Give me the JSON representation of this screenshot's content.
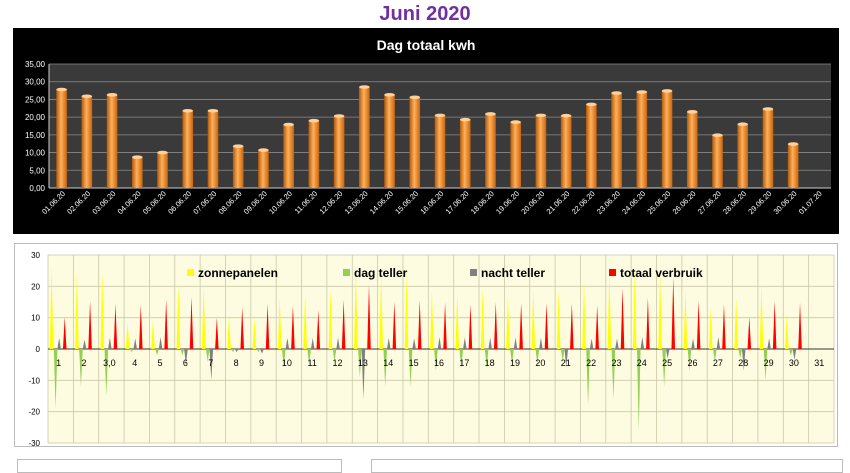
{
  "page": {
    "title": "Juni 2020"
  },
  "chart_data": [
    {
      "type": "bar",
      "title": "Dag totaal kwh",
      "categories": [
        "01.06.20",
        "02.06.20",
        "03.06.20",
        "04.06.20",
        "05.06.20",
        "06.06.20",
        "07.06.20",
        "08.06.20",
        "09.06.20",
        "10.06.20",
        "11.06.20",
        "12.06.20",
        "13.06.20",
        "14.06.20",
        "15.06.20",
        "16.06.20",
        "17.06.20",
        "18.06.20",
        "19.06.20",
        "20.06.20",
        "21.06.20",
        "22.06.20",
        "23.06.20",
        "24.06.20",
        "25.06.20",
        "26.06.20",
        "27.06.20",
        "28.06.20",
        "29.06.20",
        "30.06.20",
        "01.07.20"
      ],
      "values": [
        27.8,
        25.9,
        26.3,
        8.7,
        10.0,
        21.8,
        21.8,
        11.8,
        10.7,
        17.9,
        19.0,
        20.3,
        28.5,
        26.3,
        25.6,
        20.5,
        19.3,
        20.9,
        18.6,
        20.5,
        20.4,
        23.6,
        26.8,
        27.1,
        27.4,
        21.5,
        14.9,
        18.0,
        22.3,
        12.4,
        0
      ],
      "yticks": [
        "0,00",
        "5,00",
        "10,00",
        "15,00",
        "20,00",
        "25,00",
        "30,00",
        "35,00"
      ],
      "ylim": [
        0,
        35
      ],
      "grid": true,
      "colors": {
        "background": "#000000",
        "plot": "#3a3a3a",
        "bar": "#f07f17",
        "text": "#ffffff"
      }
    },
    {
      "type": "area",
      "categories": [
        "1",
        "2",
        "3,0",
        "4",
        "5",
        "6",
        "7",
        "8",
        "9",
        "10",
        "11",
        "12",
        "13",
        "14",
        "15",
        "16",
        "17",
        "18",
        "19",
        "20",
        "21",
        "22",
        "23",
        "24",
        "25",
        "26",
        "27",
        "28",
        "29",
        "30",
        "31"
      ],
      "ylim": [
        -30,
        30
      ],
      "yticks": [
        "30",
        "20",
        "10",
        "0",
        "-10",
        "-20",
        "-30"
      ],
      "legend_position": "top",
      "grid": true,
      "series": [
        {
          "name": "zonnepanelen",
          "color": "#ffff00",
          "values": [
            26.5,
            24.8,
            24.6,
            8.5,
            9.1,
            20.5,
            20.5,
            10.8,
            9.8,
            16.6,
            17.5,
            18.9,
            26.3,
            24.1,
            23.8,
            19.0,
            17.7,
            19.3,
            17.1,
            18.9,
            18.9,
            21.8,
            25.1,
            25.0,
            25.1,
            19.4,
            13.3,
            16.6,
            20.6,
            11.2,
            0
          ]
        },
        {
          "name": "dag teller",
          "color": "#92d050",
          "values": [
            -19.0,
            -12.0,
            -15.0,
            -1.0,
            -2.0,
            -2.0,
            -4.0,
            -1.0,
            -1.0,
            -6.0,
            -5.0,
            -4.0,
            -9.0,
            -12.0,
            -12.0,
            -7.0,
            -6.0,
            -6.0,
            -5.0,
            -5.0,
            -4.0,
            -18.0,
            -16.0,
            -26.0,
            -12.0,
            -7.0,
            -4.0,
            -3.0,
            -10.0,
            -2.0,
            0
          ]
        },
        {
          "name": "nacht teller",
          "color": "#808080",
          "values": [
            3.5,
            3.0,
            3.6,
            3.4,
            3.8,
            -5.0,
            -10.0,
            -1.0,
            -1.5,
            3.5,
            3.5,
            3.6,
            -16.0,
            3.5,
            3.4,
            3.8,
            3.7,
            3.6,
            3.6,
            3.6,
            -6.0,
            3.3,
            3.3,
            3.8,
            -3.0,
            3.4,
            3.8,
            -7.0,
            3.4,
            -3.5,
            0
          ]
        },
        {
          "name": "totaal verbruik",
          "color": "#ff0000",
          "values": [
            10.2,
            15.3,
            14.5,
            14.0,
            15.8,
            16.6,
            10.0,
            13.4,
            14.4,
            13.9,
            12.4,
            15.7,
            20.5,
            15.0,
            15.6,
            14.9,
            14.2,
            14.9,
            14.7,
            14.6,
            14.6,
            14.0,
            19.5,
            16.4,
            22.8,
            15.4,
            14.2,
            10.2,
            15.3,
            14.8,
            0
          ]
        }
      ]
    }
  ]
}
